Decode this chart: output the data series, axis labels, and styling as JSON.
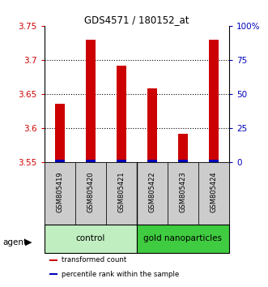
{
  "title": "GDS4571 / 180152_at",
  "samples": [
    "GSM805419",
    "GSM805420",
    "GSM805421",
    "GSM805422",
    "GSM805423",
    "GSM805424"
  ],
  "red_values": [
    3.635,
    3.73,
    3.692,
    3.658,
    3.592,
    3.73
  ],
  "ylim_left": [
    3.55,
    3.75
  ],
  "ylim_right": [
    0,
    100
  ],
  "yticks_left": [
    3.55,
    3.6,
    3.65,
    3.7,
    3.75
  ],
  "ytick_labels_right": [
    "0",
    "25",
    "50",
    "75",
    "100%"
  ],
  "groups": [
    {
      "label": "control",
      "indices": [
        0,
        1,
        2
      ],
      "color": "#c0eec0"
    },
    {
      "label": "gold nanoparticles",
      "indices": [
        3,
        4,
        5
      ],
      "color": "#40cc40"
    }
  ],
  "agent_label": "agent",
  "bar_color_red": "#cc0000",
  "bar_color_blue": "#0000bb",
  "left_tick_color": "#cc0000",
  "right_tick_color": "#0000bb",
  "legend_items": [
    {
      "color": "#cc0000",
      "label": "transformed count"
    },
    {
      "color": "#0000bb",
      "label": "percentile rank within the sample"
    }
  ],
  "sample_box_color": "#cccccc",
  "base_value": 3.55
}
